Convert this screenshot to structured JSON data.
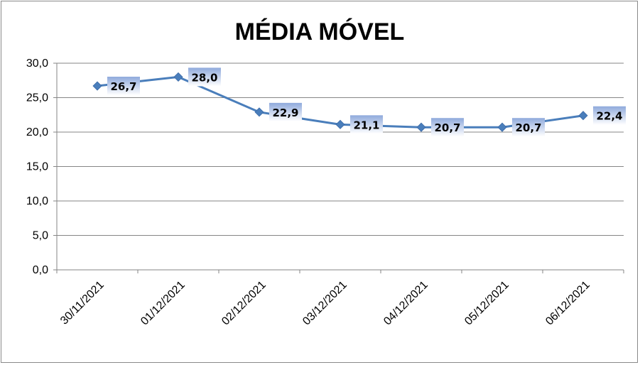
{
  "chart_data": {
    "type": "line",
    "title": "MÉDIA MÓVEL",
    "categories": [
      "30/11/2021",
      "01/12/2021",
      "02/12/2021",
      "03/12/2021",
      "04/12/2021",
      "05/12/2021",
      "06/12/2021"
    ],
    "values": [
      26.7,
      28.0,
      22.9,
      21.1,
      20.7,
      20.7,
      22.4
    ],
    "data_labels": [
      "26,7",
      "28,0",
      "22,9",
      "21,1",
      "20,7",
      "20,7",
      "22,4"
    ],
    "y_ticks": [
      "0,0",
      "5,0",
      "10,0",
      "15,0",
      "20,0",
      "25,0",
      "30,0"
    ],
    "ylim": [
      0,
      30
    ],
    "xlabel": "",
    "ylabel": "",
    "grid": "horizontal",
    "legend": "none",
    "colors": {
      "line": "#4a7ebb",
      "marker": "#4a7ebb",
      "label_box_top": "#8faadc",
      "label_box_bottom": "#ffffff",
      "grid": "#868686"
    }
  }
}
